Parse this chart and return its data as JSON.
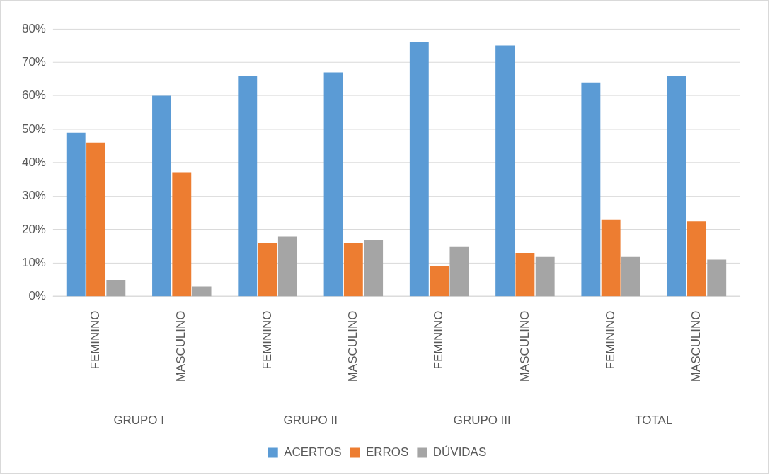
{
  "chart_data": {
    "type": "bar",
    "categories": [
      "FEMININO",
      "MASCULINO",
      "FEMININO",
      "MASCULINO",
      "FEMININO",
      "MASCULINO",
      "FEMININO",
      "MASCULINO"
    ],
    "series": [
      {
        "name": "ACERTOS",
        "color": "#5b9bd5",
        "values": [
          49,
          60,
          66,
          67,
          76,
          75,
          64,
          66
        ]
      },
      {
        "name": "ERROS",
        "color": "#ed7d31",
        "values": [
          46,
          37,
          16,
          16,
          9,
          13,
          23,
          22.5
        ]
      },
      {
        "name": "DÚVIDAS",
        "color": "#a5a5a5",
        "values": [
          5,
          3,
          18,
          17,
          15,
          12,
          12,
          11
        ]
      }
    ],
    "annotations": [
      "GRUPO I",
      "GRUPO II",
      "GRUPO III",
      "TOTAL"
    ],
    "ylim": [
      0,
      80
    ],
    "yticks": [
      {
        "value": 0,
        "label": "0%"
      },
      {
        "value": 10,
        "label": "10%"
      },
      {
        "value": 20,
        "label": "20%"
      },
      {
        "value": 30,
        "label": "30%"
      },
      {
        "value": 40,
        "label": "40%"
      },
      {
        "value": 50,
        "label": "50%"
      },
      {
        "value": 60,
        "label": "60%"
      },
      {
        "value": 70,
        "label": "70%"
      },
      {
        "value": 80,
        "label": "80%"
      }
    ],
    "grid": "y",
    "legend": "bottom"
  }
}
